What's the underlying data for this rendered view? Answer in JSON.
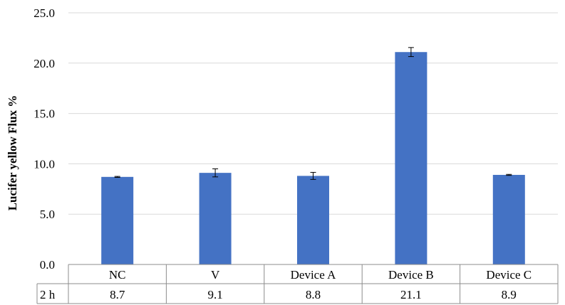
{
  "chart_data": {
    "type": "bar",
    "ylabel": "Lucifer yellow Flux %",
    "ylim": [
      0,
      25
    ],
    "yticks": [
      "0.0",
      "5.0",
      "10.0",
      "15.0",
      "20.0",
      "25.0"
    ],
    "ytick_values": [
      0,
      5,
      10,
      15,
      20,
      25
    ],
    "grid": true,
    "categories": [
      "NC",
      "V",
      "Device A",
      "Device B",
      "Device C"
    ],
    "series": [
      {
        "name": "2 h",
        "color": "#4472C4",
        "values": [
          8.7,
          9.1,
          8.8,
          21.1,
          8.9
        ],
        "errors": [
          0.05,
          0.4,
          0.35,
          0.45,
          0.05
        ]
      }
    ],
    "data_table": {
      "row_label": "2 h",
      "values": [
        "8.7",
        "9.1",
        "8.8",
        "21.1",
        "8.9"
      ]
    }
  }
}
